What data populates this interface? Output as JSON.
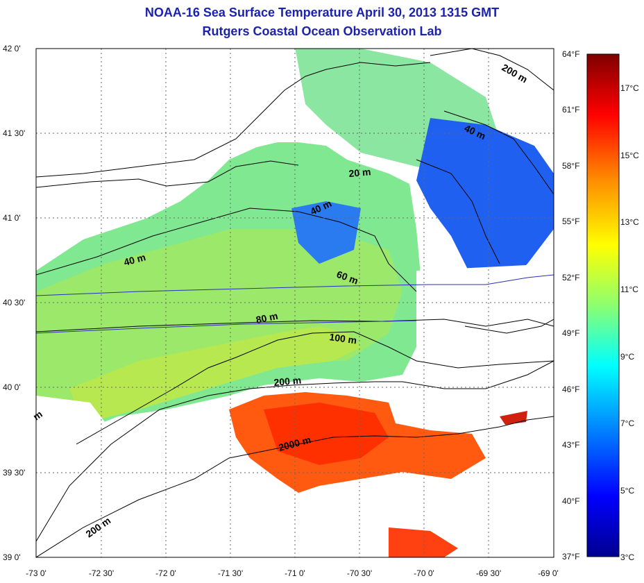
{
  "header": {
    "title": "NOAA-16 Sea Surface Temperature April 30, 2013 1315 GMT",
    "subtitle": "Rutgers Coastal Ocean Observation Lab"
  },
  "map": {
    "lon_ticks": [
      "-73 0'",
      "-72 30'",
      "-72 0'",
      "-71 30'",
      "-71 0'",
      "-70 30'",
      "-70 0'",
      "-69 30'",
      "-69 0'"
    ],
    "lat_ticks": [
      "42 0'",
      "41 30'",
      "41 0'",
      "40 30'",
      "40 0'",
      "39 30'",
      "39 0'"
    ],
    "contour_labels": [
      "200 m",
      "40 m",
      "20 m",
      "40 m",
      "40 m",
      "60 m",
      "80 m",
      "100 m",
      "200 m",
      "2000 m",
      "200 m",
      "m"
    ]
  },
  "colorbar": {
    "fahrenheit_labels": [
      "64°F",
      "61°F",
      "58°F",
      "55°F",
      "52°F",
      "49°F",
      "46°F",
      "43°F",
      "40°F",
      "37°F"
    ],
    "celsius_labels": [
      "17°C",
      "15°C",
      "13°C",
      "11°C",
      "9°C",
      "7°C",
      "5°C",
      "3°C"
    ],
    "colors": [
      "#7f0000",
      "#ff0000",
      "#ff8c00",
      "#ffff00",
      "#8cff70",
      "#00ffff",
      "#0080ff",
      "#0000ff",
      "#00008f"
    ]
  }
}
